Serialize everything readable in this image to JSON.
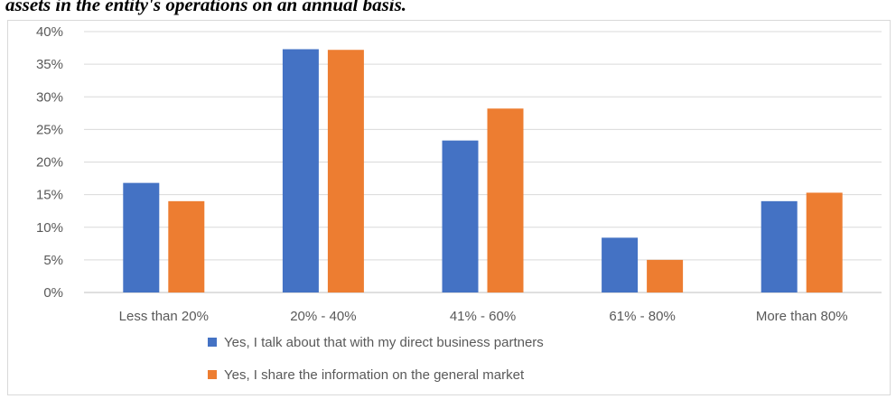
{
  "caption": "assets in the entity's operations on an annual basis.",
  "chart_data": {
    "type": "bar",
    "categories": [
      "Less than 20%",
      "20% - 40%",
      "41% - 60%",
      "61% - 80%",
      "More than 80%"
    ],
    "series": [
      {
        "name": "Yes, I talk about that with my direct business partners",
        "color": "#4472c4",
        "values": [
          16.8,
          37.3,
          23.3,
          8.4,
          14.0
        ]
      },
      {
        "name": "Yes, I share the information on the general market",
        "color": "#ed7d31",
        "values": [
          14.0,
          37.2,
          28.2,
          5.0,
          15.3
        ]
      }
    ],
    "y_ticks": [
      "0%",
      "5%",
      "10%",
      "15%",
      "20%",
      "25%",
      "30%",
      "35%",
      "40%"
    ],
    "ylim": [
      0,
      40
    ],
    "grid": true,
    "legend": "bottom"
  }
}
